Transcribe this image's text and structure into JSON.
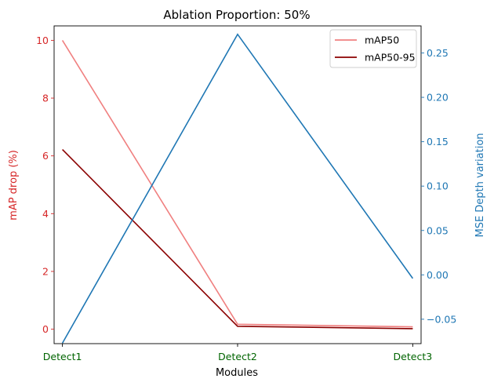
{
  "chart_data": {
    "type": "line",
    "title": "Ablation Proportion: 50%",
    "xlabel": "Modules",
    "ylabel_left": "mAP drop (%)",
    "ylabel_right": "MSE Depth variation",
    "categories": [
      "Detect1",
      "Detect2",
      "Detect3"
    ],
    "ylim_left": [
      -0.5,
      10.5
    ],
    "yticks_left": [
      "0",
      "2",
      "4",
      "6",
      "8",
      "10"
    ],
    "ylim_right": [
      -0.0775,
      0.2805
    ],
    "yticks_right": [
      "−0.05",
      "0.00",
      "0.05",
      "0.10",
      "0.15",
      "0.20",
      "0.25"
    ],
    "series_left": [
      {
        "name": "mAP50",
        "values": [
          10.0,
          0.17,
          0.08
        ],
        "color": "#f08080"
      },
      {
        "name": "mAP50-95",
        "values": [
          6.22,
          0.1,
          0.02
        ],
        "color": "#8b0000"
      }
    ],
    "series_right": [
      {
        "values": [
          -0.077,
          0.271,
          -0.004
        ],
        "color": "#1f77b4"
      }
    ],
    "legend_position": "top-right",
    "colors": {
      "left_axis": "#d62728",
      "right_axis": "#1f77b4",
      "x_ticks": "#006400"
    }
  }
}
